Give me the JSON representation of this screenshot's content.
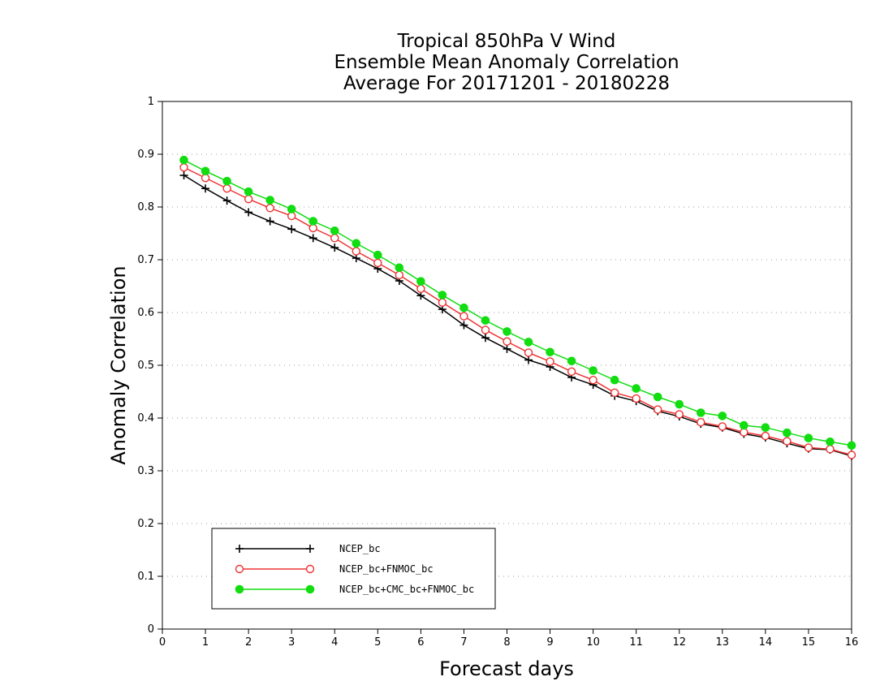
{
  "chart_data": {
    "type": "line",
    "title": [
      "Tropical 850hPa V Wind",
      "Ensemble Mean Anomaly Correlation",
      "Average For 20171201 - 20180228"
    ],
    "xlabel": "Forecast days",
    "ylabel": "Anomaly Correlation",
    "xlim": [
      0,
      16
    ],
    "ylim": [
      0,
      1
    ],
    "xticks": [
      0,
      1,
      2,
      3,
      4,
      5,
      6,
      7,
      8,
      9,
      10,
      11,
      12,
      13,
      14,
      15,
      16
    ],
    "xtick_labels": [
      "0",
      "1",
      "2",
      "3",
      "4",
      "5",
      "6",
      "7",
      "8",
      "9",
      "10",
      "11",
      "12",
      "13",
      "14",
      "15",
      "16"
    ],
    "yticks": [
      0,
      0.1,
      0.2,
      0.3,
      0.4,
      0.5,
      0.6,
      0.7,
      0.8,
      0.9,
      1
    ],
    "ytick_labels": [
      "0",
      "0.1",
      "0.2",
      "0.3",
      "0.4",
      "0.5",
      "0.6",
      "0.7",
      "0.8",
      "0.9",
      "1"
    ],
    "grid": true,
    "legend_position": "bottom-left",
    "x": [
      0.5,
      1,
      1.5,
      2,
      2.5,
      3,
      3.5,
      4,
      4.5,
      5,
      5.5,
      6,
      6.5,
      7,
      7.5,
      8,
      8.5,
      9,
      9.5,
      10,
      10.5,
      11,
      11.5,
      12,
      12.5,
      13,
      13.5,
      14,
      14.5,
      15,
      15.5,
      16
    ],
    "series": [
      {
        "name": "NCEP_bc",
        "color": "#000000",
        "marker": "plus",
        "values": [
          0.86,
          0.835,
          0.812,
          0.79,
          0.773,
          0.758,
          0.741,
          0.723,
          0.703,
          0.683,
          0.66,
          0.632,
          0.606,
          0.576,
          0.552,
          0.531,
          0.51,
          0.497,
          0.477,
          0.463,
          0.442,
          0.432,
          0.413,
          0.403,
          0.389,
          0.382,
          0.37,
          0.363,
          0.352,
          0.342,
          0.34,
          0.328
        ]
      },
      {
        "name": "NCEP_bc+FNMOC_bc",
        "color": "#ee3333",
        "marker": "open-circle",
        "values": [
          0.875,
          0.855,
          0.835,
          0.815,
          0.798,
          0.783,
          0.76,
          0.741,
          0.716,
          0.694,
          0.671,
          0.645,
          0.619,
          0.593,
          0.567,
          0.545,
          0.524,
          0.507,
          0.488,
          0.472,
          0.448,
          0.437,
          0.416,
          0.407,
          0.392,
          0.384,
          0.373,
          0.366,
          0.356,
          0.344,
          0.341,
          0.33
        ]
      },
      {
        "name": "NCEP_bc+CMC_bc+FNMOC_bc",
        "color": "#11dd11",
        "marker": "filled-circle",
        "values": [
          0.889,
          0.868,
          0.849,
          0.829,
          0.813,
          0.796,
          0.773,
          0.755,
          0.731,
          0.709,
          0.685,
          0.659,
          0.633,
          0.609,
          0.585,
          0.564,
          0.544,
          0.525,
          0.508,
          0.49,
          0.472,
          0.456,
          0.44,
          0.426,
          0.41,
          0.404,
          0.386,
          0.382,
          0.372,
          0.362,
          0.355,
          0.348
        ]
      }
    ]
  }
}
